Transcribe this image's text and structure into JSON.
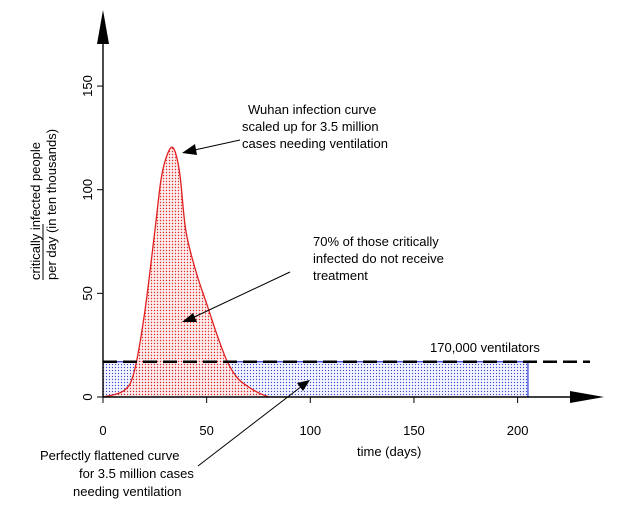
{
  "chart_data": {
    "type": "area",
    "xlabel": "time (days)",
    "ylabel_lines": [
      "critically infected people",
      "per day (in ten thousands)"
    ],
    "ylabel_underlined_word": "critically",
    "x_ticks": [
      0,
      50,
      100,
      150,
      200
    ],
    "y_ticks": [
      0,
      50,
      100,
      150
    ],
    "xlim": [
      0,
      240
    ],
    "ylim": [
      0,
      185
    ],
    "series": [
      {
        "x": [
          0,
          10,
          15,
          20,
          25,
          28,
          31,
          34,
          37,
          40,
          45,
          50,
          55,
          60,
          65,
          70,
          75,
          80
        ],
        "y": [
          0,
          3,
          12,
          40,
          80,
          105,
          117,
          120,
          108,
          80,
          60,
          45,
          30,
          17,
          9,
          5,
          2,
          0
        ],
        "color": "#e02020"
      },
      {
        "x": [
          0,
          205
        ],
        "y": [
          17,
          17
        ],
        "color": "#3040d0"
      }
    ],
    "threshold": {
      "y": 17,
      "label": "170,000 ventilators"
    },
    "annotations": [
      {
        "id": "wuhan",
        "lines": [
          "Wuhan infection curve",
          "scaled up for 3.5 million",
          "cases needing ventilation"
        ],
        "point_to": [
          37,
          120
        ]
      },
      {
        "id": "untreated",
        "lines": [
          "70% of those critically",
          "infected do not receive",
          "treatment"
        ],
        "point_to": [
          38,
          35
        ]
      },
      {
        "id": "flattened",
        "lines": [
          "Perfectly flattened curve",
          "for 3.5 million cases",
          "needing ventilation"
        ],
        "point_to": [
          103,
          9
        ]
      }
    ]
  }
}
